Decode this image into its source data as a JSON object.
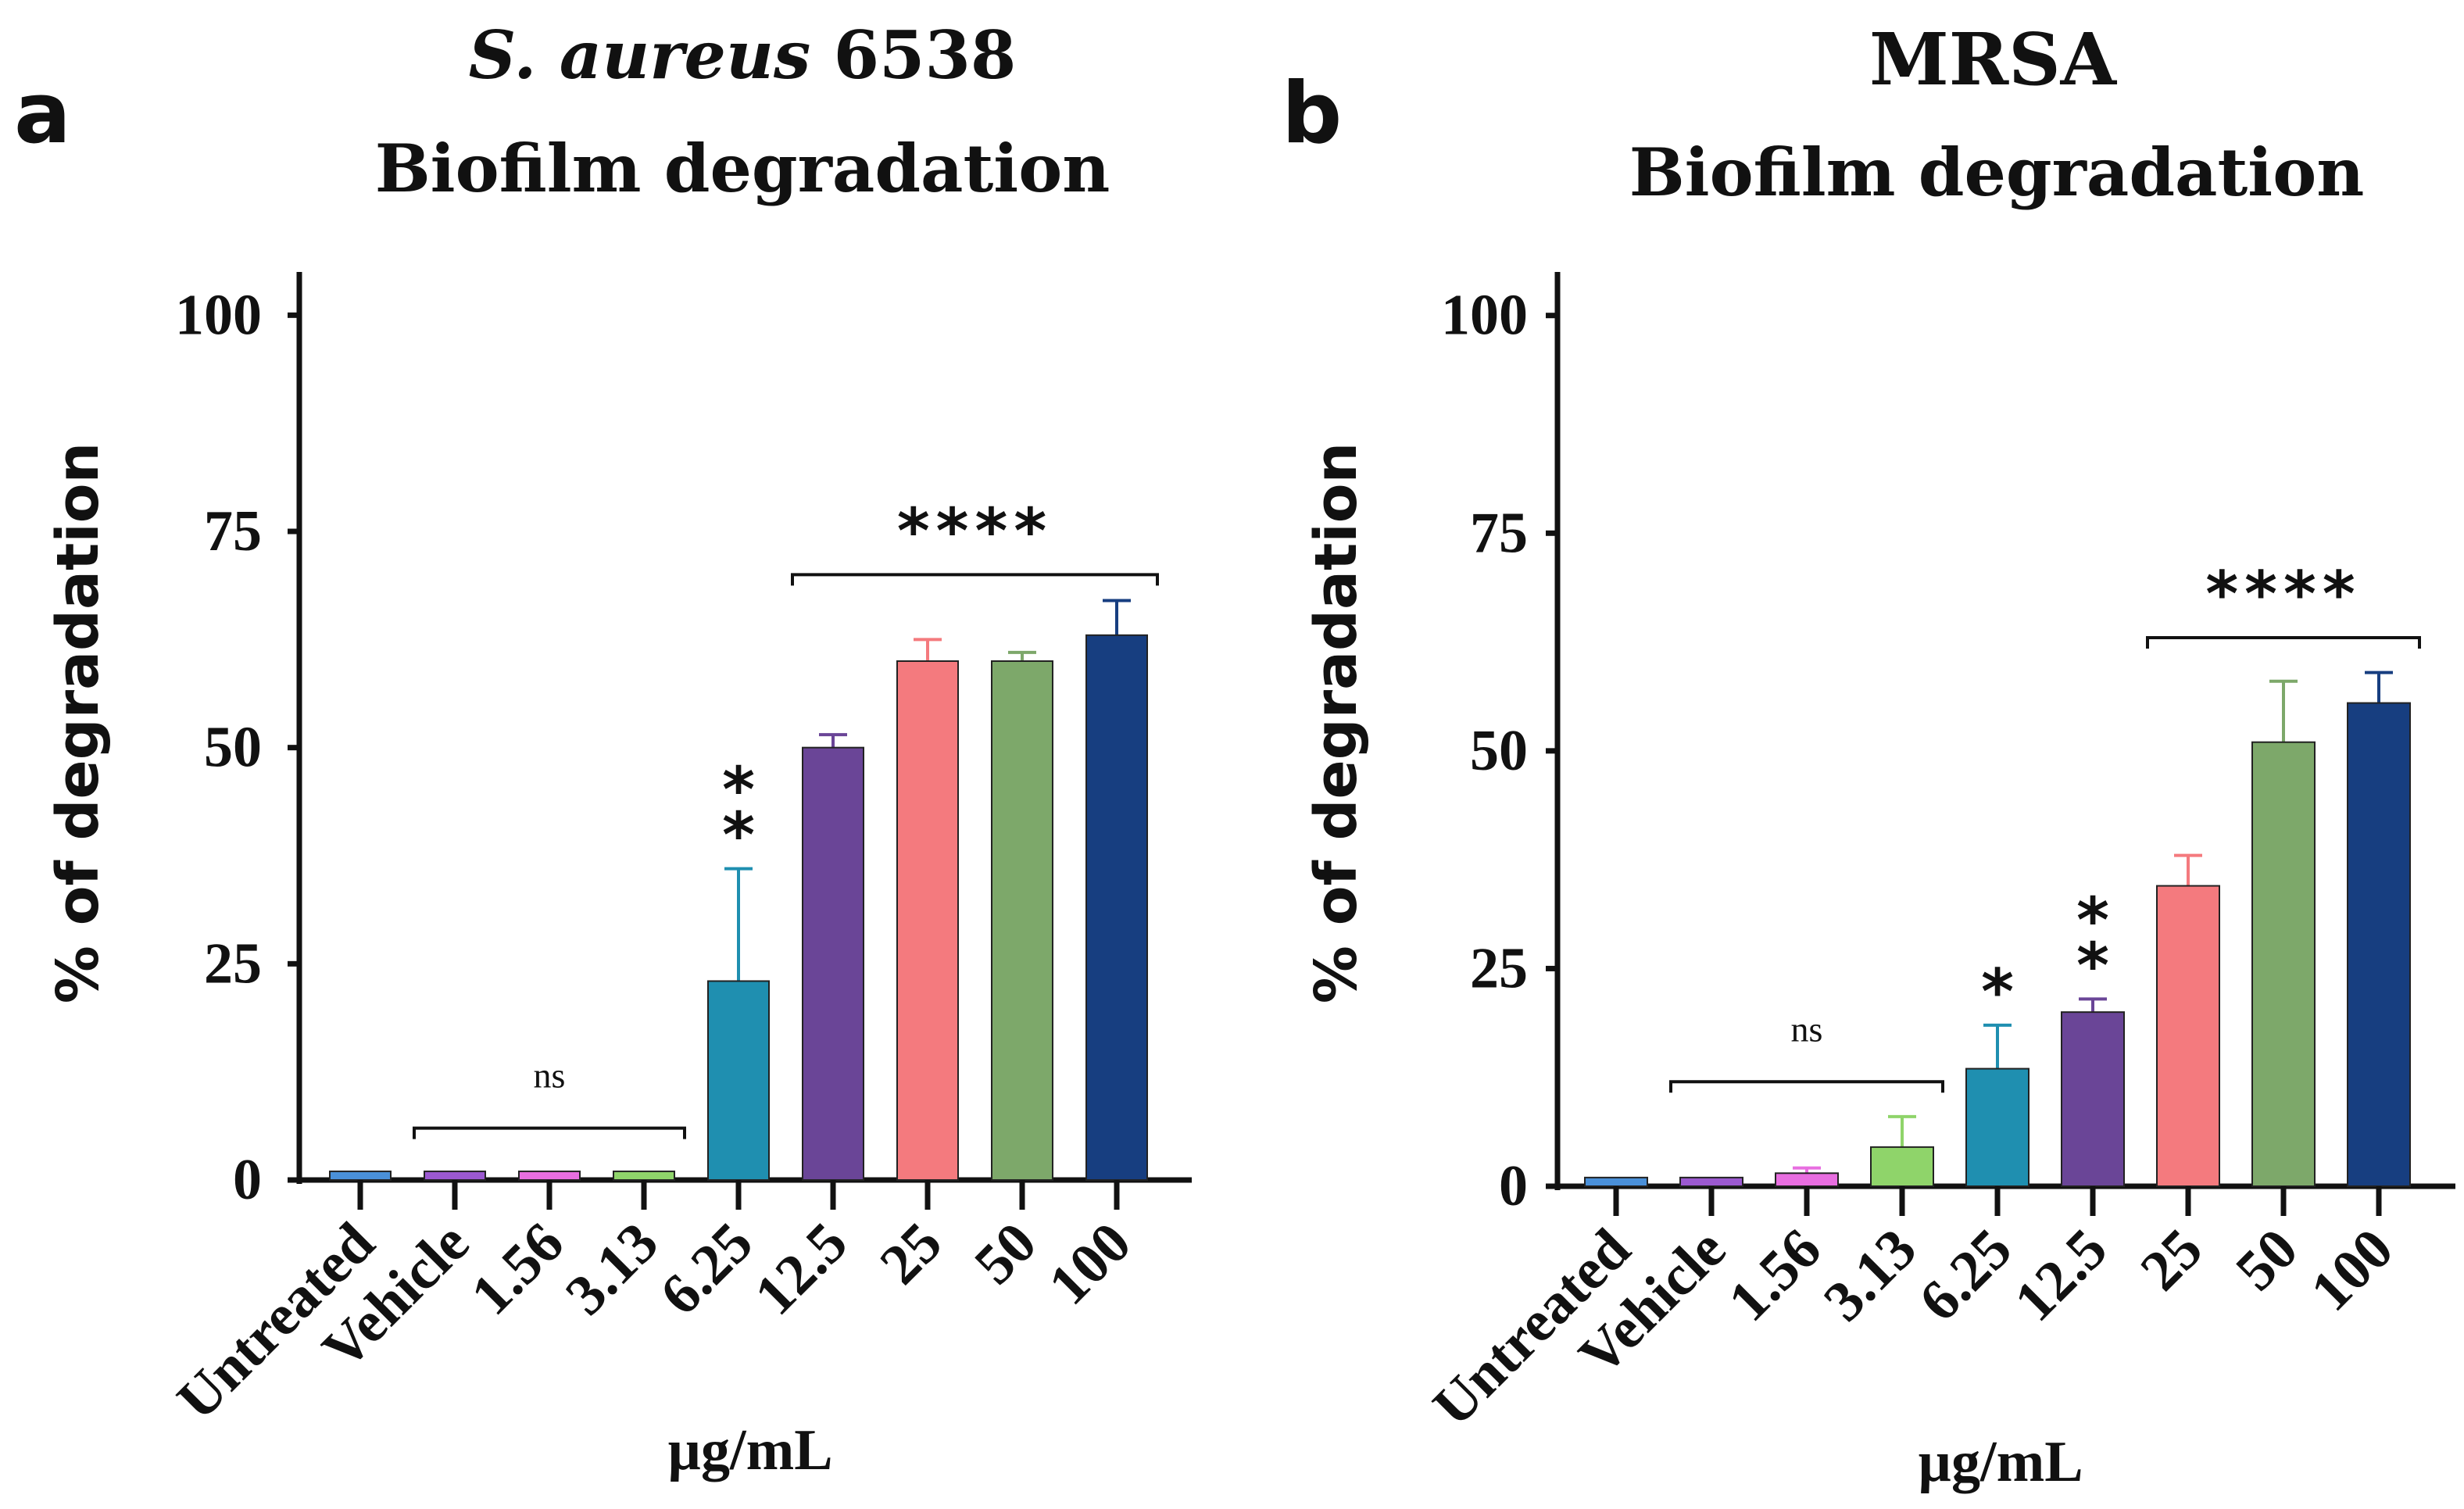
{
  "chart_data": [
    {
      "panel_label": "a",
      "type": "bar",
      "title_italic": "S. aureus",
      "title_rest": " 6538",
      "subtitle": "Biofilm degradation",
      "xlabel": "µg/mL",
      "ylabel": "% of degradation",
      "ylim": [
        0,
        105
      ],
      "yticks": [
        0,
        25,
        50,
        75,
        100
      ],
      "categories": [
        "Untreated",
        "Vehicle",
        "1.56",
        "3.13",
        "6.25",
        "12.5",
        "25",
        "50",
        "100"
      ],
      "values": [
        1,
        1,
        1,
        1,
        23,
        50,
        60,
        60,
        63
      ],
      "errors": [
        0,
        0,
        0,
        0,
        13,
        1.5,
        2.5,
        1,
        4
      ],
      "colors": [
        "#4a90d9",
        "#9b59d0",
        "#e86ee0",
        "#8fd46a",
        "#1f8fb0",
        "#6a4597",
        "#f47a7e",
        "#7da86a",
        "#173e80"
      ],
      "annotations": [
        {
          "bar": 4,
          "text": "**"
        }
      ],
      "brackets": [
        {
          "from": 1,
          "to": 3,
          "y": 6,
          "text": "ns"
        },
        {
          "from": 5,
          "to": 8,
          "y": 70,
          "text": "****"
        }
      ]
    },
    {
      "panel_label": "b",
      "type": "bar",
      "title_italic": "",
      "title_rest": "MRSA",
      "subtitle": "Biofilm degradation",
      "xlabel": "µg/mL",
      "ylabel": "% of degradation",
      "ylim": [
        0,
        105
      ],
      "yticks": [
        0,
        25,
        50,
        75,
        100
      ],
      "categories": [
        "Untreated",
        "Vehicle",
        "1.56",
        "3.13",
        "6.25",
        "12.5",
        "25",
        "50",
        "100"
      ],
      "values": [
        1,
        1,
        1.5,
        4.5,
        13.5,
        20,
        34.5,
        51,
        55.5
      ],
      "errors": [
        0,
        0,
        0.6,
        3.5,
        5,
        1.5,
        3.5,
        7,
        3.5
      ],
      "colors": [
        "#4a90d9",
        "#9b59d0",
        "#e86ee0",
        "#8fd46a",
        "#1f8fb0",
        "#6a4597",
        "#f47a7e",
        "#7da86a",
        "#173e80"
      ],
      "annotations": [
        {
          "bar": 4,
          "text": "*"
        },
        {
          "bar": 5,
          "text": "**"
        }
      ],
      "brackets": [
        {
          "from": 1,
          "to": 3,
          "y": 12,
          "text": "ns"
        },
        {
          "from": 6,
          "to": 8,
          "y": 63,
          "text": "****"
        }
      ]
    }
  ]
}
